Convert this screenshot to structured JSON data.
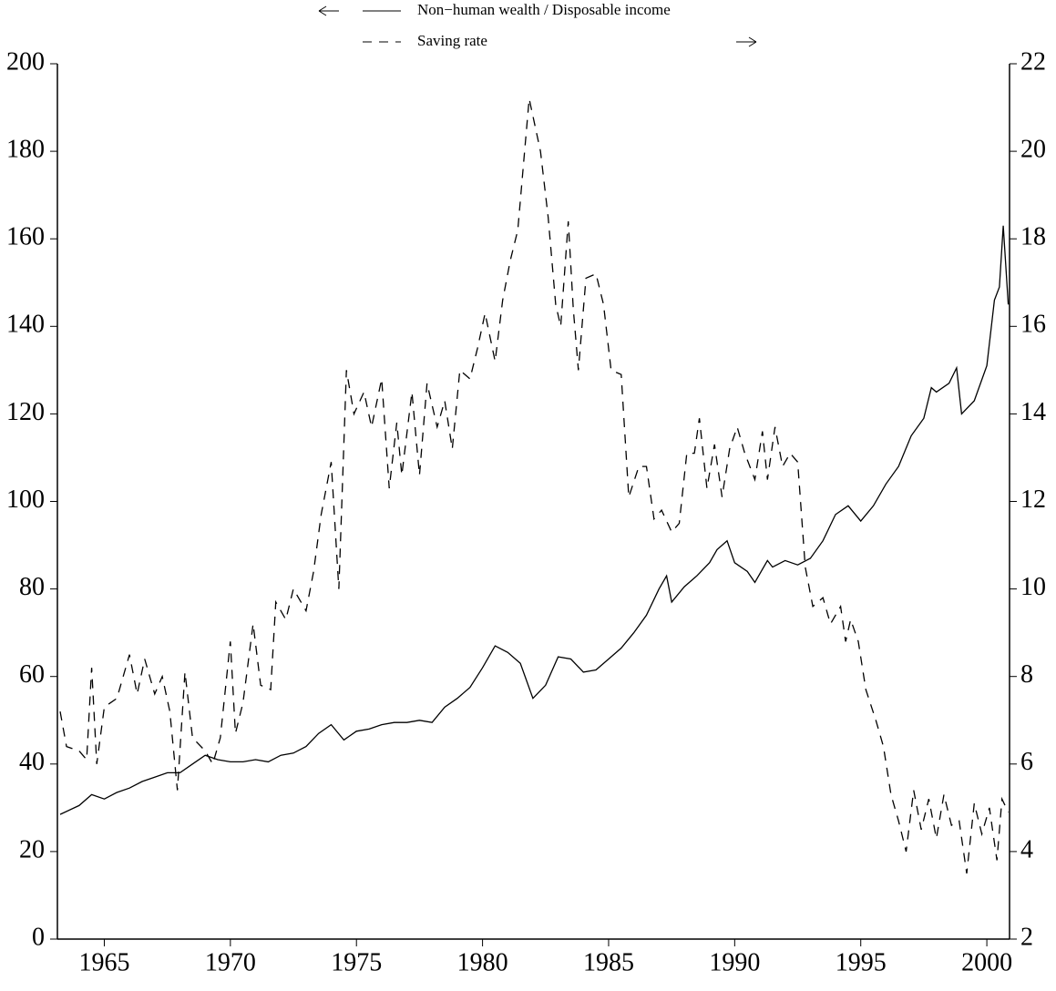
{
  "chart_data": {
    "type": "line",
    "series": [
      {
        "name": "Non−human wealth / Disposable income",
        "color": "#000000",
        "dash": "none",
        "axis": "y",
        "x": [
          1963.25,
          1964,
          1964.5,
          1965,
          1965.5,
          1966,
          1966.5,
          1967,
          1967.5,
          1968,
          1968.5,
          1969,
          1969.5,
          1970,
          1970.5,
          1971,
          1971.5,
          1972,
          1972.5,
          1973,
          1973.5,
          1974,
          1974.5,
          1975,
          1975.5,
          1976,
          1976.5,
          1977,
          1977.5,
          1978,
          1978.5,
          1979,
          1979.5,
          1980,
          1980.5,
          1981,
          1981.5,
          1982,
          1982.5,
          1983,
          1983.5,
          1984,
          1984.5,
          1985,
          1985.5,
          1986,
          1986.5,
          1987,
          1987.3,
          1987.5,
          1988,
          1988.5,
          1989,
          1989.3,
          1989.7,
          1990,
          1990.5,
          1990.8,
          1991.3,
          1991.5,
          1992,
          1992.5,
          1993,
          1993.5,
          1994,
          1994.5,
          1995,
          1995.5,
          1996,
          1996.5,
          1997,
          1997.5,
          1997.8,
          1998,
          1998.5,
          1998.8,
          1999,
          1999.5,
          2000,
          2000.3,
          2000.5,
          2000.65,
          2000.85
        ],
        "values": [
          28.5,
          30.5,
          33,
          32,
          33.5,
          34.5,
          36,
          37,
          38,
          38,
          40,
          42,
          41,
          40.5,
          40.5,
          41,
          40.5,
          42,
          42.5,
          44,
          47,
          49,
          45.5,
          47.5,
          48,
          49,
          49.5,
          49.5,
          50,
          49.5,
          53,
          55,
          57.5,
          62,
          67,
          65.5,
          63,
          55,
          58,
          64.5,
          64,
          61,
          61.5,
          64,
          66.5,
          70,
          74,
          80,
          83,
          77,
          80.5,
          83,
          86,
          89,
          91,
          86,
          84,
          81.5,
          86.5,
          85,
          86.5,
          85.5,
          87,
          91,
          97,
          99,
          95.5,
          99,
          104,
          108,
          115,
          119,
          126,
          125,
          127,
          130.5,
          120,
          123,
          131,
          146,
          149,
          163,
          145
        ]
      },
      {
        "name": "Saving rate",
        "color": "#000000",
        "dash": "10 8",
        "axis": "y2",
        "x": [
          1963.25,
          1963.5,
          1964,
          1964.3,
          1964.5,
          1964.7,
          1965,
          1965.5,
          1966,
          1966.3,
          1966.6,
          1967,
          1967.3,
          1967.6,
          1967.9,
          1968.2,
          1968.5,
          1969,
          1969.3,
          1969.6,
          1970,
          1970.2,
          1970.5,
          1970.9,
          1971.2,
          1971.6,
          1971.8,
          1972.2,
          1972.5,
          1973,
          1973.3,
          1973.6,
          1974,
          1974.3,
          1974.6,
          1974.9,
          1975.3,
          1975.6,
          1976,
          1976.3,
          1976.6,
          1976.8,
          1977.2,
          1977.5,
          1977.8,
          1978.2,
          1978.5,
          1978.8,
          1979.1,
          1979.5,
          1979.8,
          1980.1,
          1980.5,
          1980.8,
          1981.1,
          1981.4,
          1981.7,
          1981.85,
          1982.3,
          1982.6,
          1982.9,
          1983.1,
          1983.4,
          1983.6,
          1983.8,
          1984.1,
          1984.5,
          1984.8,
          1985.1,
          1985.5,
          1985.8,
          1986.2,
          1986.5,
          1986.8,
          1987.1,
          1987.5,
          1987.8,
          1988.1,
          1988.4,
          1988.6,
          1988.9,
          1989.2,
          1989.5,
          1989.8,
          1990.1,
          1990.4,
          1990.8,
          1991.1,
          1991.3,
          1991.6,
          1991.9,
          1992.2,
          1992.5,
          1992.8,
          1993.1,
          1993.5,
          1993.8,
          1994.2,
          1994.4,
          1994.6,
          1994.9,
          1995.2,
          1995.6,
          1995.9,
          1996.2,
          1996.5,
          1996.8,
          1997.1,
          1997.4,
          1997.7,
          1998,
          1998.3,
          1998.6,
          1998.9,
          1999.2,
          1999.5,
          1999.8,
          2000.1,
          2000.4,
          2000.6,
          2000.85
        ],
        "values": [
          7.2,
          6.4,
          6.3,
          6.1,
          8.2,
          6.0,
          7.3,
          7.5,
          8.5,
          7.6,
          8.4,
          7.6,
          8.0,
          7.2,
          5.4,
          8.1,
          6.6,
          6.3,
          6.0,
          6.6,
          8.8,
          6.7,
          7.4,
          9.2,
          7.8,
          7.7,
          9.7,
          9.3,
          10.0,
          9.5,
          10.4,
          11.7,
          12.9,
          10.0,
          15.0,
          14.0,
          14.5,
          13.7,
          14.8,
          12.3,
          13.8,
          12.6,
          14.5,
          12.6,
          14.7,
          13.7,
          14.3,
          13.2,
          15.0,
          14.8,
          15.5,
          16.3,
          15.2,
          16.6,
          17.5,
          18.2,
          20.2,
          21.2,
          20.0,
          18.5,
          16.5,
          16.0,
          18.4,
          16.4,
          15.0,
          17.1,
          17.2,
          16.5,
          15.0,
          14.9,
          12.1,
          12.8,
          12.8,
          11.6,
          11.8,
          11.3,
          11.5,
          13.1,
          13.1,
          13.9,
          12.3,
          13.3,
          12.1,
          13.2,
          13.7,
          13.1,
          12.5,
          13.6,
          12.5,
          13.7,
          12.8,
          13.1,
          12.9,
          10.5,
          9.6,
          9.8,
          9.2,
          9.6,
          8.8,
          9.3,
          8.8,
          7.7,
          7.0,
          6.4,
          5.3,
          4.7,
          4.0,
          5.4,
          4.5,
          5.2,
          4.3,
          5.3,
          4.6,
          4.7,
          3.5,
          5.1,
          4.4,
          5.0,
          3.8,
          5.2,
          4.9
        ]
      }
    ],
    "xlim": [
      1963.14,
      2000.9
    ],
    "xticks": [
      1965,
      1970,
      1975,
      1980,
      1985,
      1990,
      1995,
      2000
    ],
    "ylim": [
      0,
      200
    ],
    "yticks": [
      0,
      20,
      40,
      60,
      80,
      100,
      120,
      140,
      160,
      180,
      200
    ],
    "y2lim": [
      2,
      22
    ],
    "y2ticks": [
      2,
      4,
      6,
      8,
      10,
      12,
      14,
      16,
      18,
      20,
      22
    ]
  }
}
